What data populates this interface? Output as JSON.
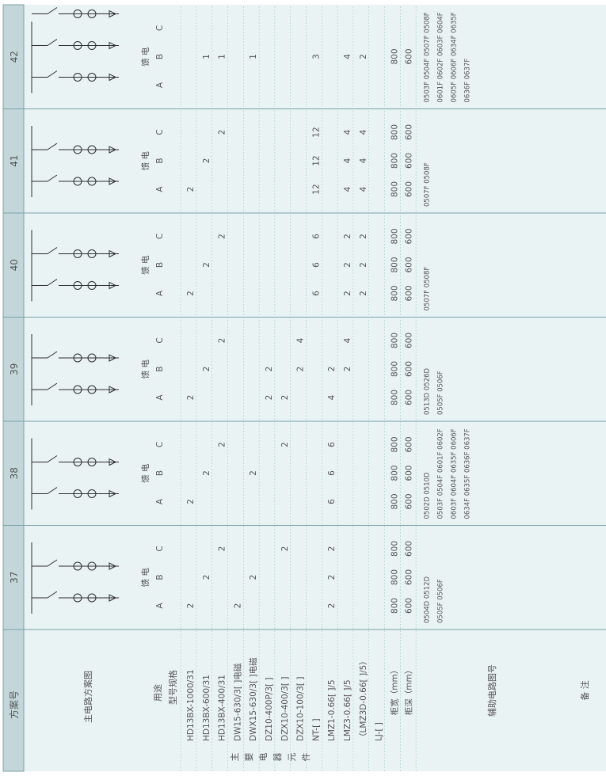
{
  "colors": {
    "header_band": "#c3d7da",
    "header_border": "#7aa2a8",
    "panel_bg": "#e9f3f4",
    "line": "#2d2d2d",
    "grid": "#9cc1c6"
  },
  "header": {
    "label": "方案号",
    "schemes": [
      "37",
      "38",
      "39",
      "40",
      "41",
      "42"
    ]
  },
  "rows": {
    "main_circuit": "主电路方案图",
    "usage": "用途",
    "model_spec": "型号规格",
    "main_components": [
      "主",
      "要",
      "电",
      "器",
      "元",
      "件"
    ],
    "aux_circuit": "辅助电路图号",
    "remarks": "备  注"
  },
  "components": [
    "HD13BX-1000/31",
    "HD13BX-600/31",
    "HD13BX-400/31",
    "DW15-630/3[ ]电磁",
    "DWX15-630/3[ ]电磁",
    "DZ10-400P/3[ ]",
    "DZX10-400/3[ ]",
    "DZX10-100/3[ ]",
    "NT-[ ]",
    "LMZ1-0.66[ ]/5",
    "LMZ3-0.66[ ]/5",
    "（LMZ3D-0.66[ ]/5）",
    "LJ-[ ]"
  ],
  "dims": {
    "width": "柜宽（mm）",
    "depth": "柜深（mm）"
  },
  "feed_label": "馈  电",
  "cols": [
    "A",
    "B",
    "C"
  ],
  "schemes": [
    {
      "id": "37",
      "values": [
        [
          "2",
          "",
          ""
        ],
        [
          "",
          "2",
          ""
        ],
        [
          "",
          "",
          "2"
        ],
        [
          "2",
          "",
          ""
        ],
        [
          "",
          "2",
          ""
        ],
        [
          "",
          "",
          ""
        ],
        [
          "",
          "",
          "2"
        ],
        [
          "",
          "",
          ""
        ],
        [
          "",
          "",
          ""
        ],
        [
          "2",
          "2",
          "2"
        ],
        [
          "",
          "",
          ""
        ],
        [
          "",
          "",
          ""
        ],
        [
          "",
          "",
          ""
        ]
      ],
      "width": [
        "800",
        "800",
        "800"
      ],
      "depth": [
        "600",
        "600",
        "600"
      ],
      "aux": [
        "0504D 0512D",
        "0505F 0506F"
      ]
    },
    {
      "id": "38",
      "values": [
        [
          "2",
          "",
          ""
        ],
        [
          "",
          "2",
          ""
        ],
        [
          "",
          "",
          "2"
        ],
        [
          "",
          "",
          ""
        ],
        [
          "",
          "2",
          ""
        ],
        [
          "",
          "",
          ""
        ],
        [
          "",
          "",
          "2"
        ],
        [
          "",
          "",
          ""
        ],
        [
          "",
          "",
          ""
        ],
        [
          "6",
          "6",
          "6"
        ],
        [
          "",
          "",
          ""
        ],
        [
          "",
          "",
          ""
        ],
        [
          "",
          "",
          ""
        ]
      ],
      "width": [
        "800",
        "800",
        "800"
      ],
      "depth": [
        "600",
        "600",
        "600"
      ],
      "aux": [
        "0502D 0510D",
        "0503F 0504F 0601F 0602F",
        "0603F 0604F 0635F 0606F",
        "0634F 0635F 0636F 0637F"
      ]
    },
    {
      "id": "39",
      "values": [
        [
          "2",
          "",
          ""
        ],
        [
          "",
          "2",
          ""
        ],
        [
          "",
          "",
          "2"
        ],
        [
          "",
          "",
          ""
        ],
        [
          "",
          "",
          ""
        ],
        [
          "2",
          "2",
          ""
        ],
        [
          "2",
          "",
          ""
        ],
        [
          "",
          "2",
          "4"
        ],
        [
          "",
          "",
          ""
        ],
        [
          "4",
          "2",
          ""
        ],
        [
          "",
          "2",
          "4"
        ],
        [
          "",
          "",
          ""
        ],
        [
          "",
          "",
          ""
        ]
      ],
      "width": [
        "800",
        "800",
        "800"
      ],
      "depth": [
        "600",
        "600",
        "600"
      ],
      "aux": [
        "0513D 0526D",
        "0505F 0506F"
      ]
    },
    {
      "id": "40",
      "values": [
        [
          "2",
          "",
          ""
        ],
        [
          "",
          "2",
          ""
        ],
        [
          "",
          "",
          "2"
        ],
        [
          "",
          "",
          ""
        ],
        [
          "",
          "",
          ""
        ],
        [
          "",
          "",
          ""
        ],
        [
          "",
          "",
          ""
        ],
        [
          "",
          "",
          ""
        ],
        [
          "6",
          "6",
          "6"
        ],
        [
          "",
          "",
          ""
        ],
        [
          "2",
          "2",
          "2"
        ],
        [
          "2",
          "2",
          "2"
        ],
        [
          "",
          "",
          ""
        ]
      ],
      "width": [
        "800",
        "800",
        "800"
      ],
      "depth": [
        "600",
        "600",
        "600"
      ],
      "aux": [
        "0507F 0508F"
      ]
    },
    {
      "id": "41",
      "values": [
        [
          "2",
          "",
          ""
        ],
        [
          "",
          "2",
          ""
        ],
        [
          "",
          "",
          "2"
        ],
        [
          "",
          "",
          ""
        ],
        [
          "",
          "",
          ""
        ],
        [
          "",
          "",
          ""
        ],
        [
          "",
          "",
          ""
        ],
        [
          "",
          "",
          ""
        ],
        [
          "12",
          "12",
          "12"
        ],
        [
          "",
          "",
          ""
        ],
        [
          "4",
          "4",
          "4"
        ],
        [
          "4",
          "4",
          "4"
        ],
        [
          "",
          "",
          ""
        ]
      ],
      "width": [
        "800",
        "800",
        "800"
      ],
      "depth": [
        "600",
        "600",
        "600"
      ],
      "aux": [
        "0507F 0508F"
      ]
    },
    {
      "id": "42",
      "values": [
        [
          "",
          "",
          ""
        ],
        [
          "",
          "1",
          ""
        ],
        [
          "",
          "1",
          ""
        ],
        [
          "",
          "",
          ""
        ],
        [
          "",
          "1",
          ""
        ],
        [
          "",
          "",
          ""
        ],
        [
          "",
          "",
          ""
        ],
        [
          "",
          "",
          ""
        ],
        [
          "",
          "3",
          ""
        ],
        [
          "",
          "",
          ""
        ],
        [
          "",
          "4",
          ""
        ],
        [
          "",
          "2",
          ""
        ],
        [
          "",
          "",
          ""
        ]
      ],
      "width": [
        "",
        "800",
        ""
      ],
      "depth": [
        "",
        "600",
        ""
      ],
      "aux": [
        "0503F 0504F 0507F 0508F",
        "0601F 0602F 0603F 0604F",
        "0605F 0606F 0634F 0635F",
        "0636F 0637F"
      ]
    }
  ]
}
